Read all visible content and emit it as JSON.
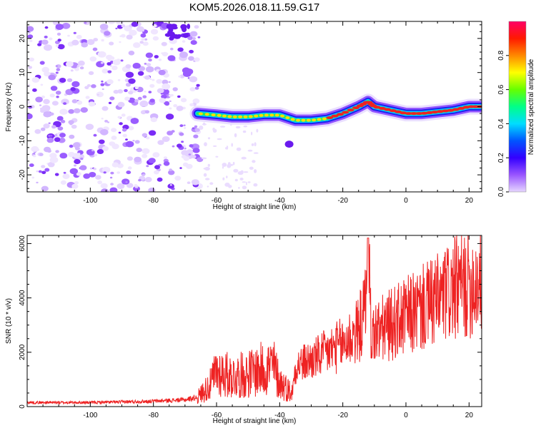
{
  "title": "KOM5.2026.018.11.59.G17",
  "colors": {
    "snr_line": "#ee2222",
    "track_core": "#ee2222",
    "track_edge": "#2200dd",
    "noise": "#6a1aee",
    "colorbar": [
      "#cc99ff",
      "#5500ff",
      "#0022ff",
      "#00ddff",
      "#00ff55",
      "#aaff00",
      "#ffff00",
      "#ff8800",
      "#ff2200",
      "#ff0077"
    ]
  },
  "chart_data": [
    {
      "type": "heatmap",
      "xlabel": "Height of straight line (km)",
      "ylabel": "Frequency (Hz)",
      "xlim": [
        -120,
        24
      ],
      "ylim": [
        -25,
        25
      ],
      "xticks": [
        "-100",
        "-80",
        "-60",
        "-40",
        "-20",
        "0",
        "20"
      ],
      "yticks": [
        "-20",
        "-10",
        "0",
        "10",
        "20"
      ],
      "colorbar": {
        "label": "Normalized spectral amplitude",
        "range": [
          0,
          1
        ],
        "ticks": [
          "0.0",
          "0.2",
          "0.4",
          "0.6",
          "0.8"
        ]
      },
      "noise_region_x": [
        -120,
        -65
      ],
      "track": {
        "x": [
          -66,
          -60,
          -55,
          -50,
          -45,
          -40,
          -35,
          -30,
          -25,
          -20,
          -15,
          -12,
          -10,
          -5,
          0,
          5,
          10,
          15,
          20,
          24
        ],
        "y": [
          -2,
          -2.5,
          -3,
          -3,
          -2.5,
          -2.5,
          -4,
          -4,
          -3.5,
          -2,
          0,
          1.5,
          0,
          -1,
          -2,
          -2,
          -1.5,
          -1,
          0,
          0
        ]
      }
    },
    {
      "type": "line",
      "xlabel": "Height of straight line (km)",
      "ylabel": "SNR (10 * v/v)",
      "xlim": [
        -120,
        24
      ],
      "ylim": [
        0,
        6300
      ],
      "xticks": [
        "-100",
        "-80",
        "-60",
        "-40",
        "-20",
        "0",
        "20"
      ],
      "yticks": [
        "0",
        "2000",
        "4000",
        "6000"
      ],
      "series": [
        {
          "x": [
            -120,
            -110,
            -100,
            -90,
            -80,
            -70,
            -66,
            -62,
            -60,
            -55,
            -50,
            -45,
            -42,
            -40,
            -36,
            -35,
            -30,
            -25,
            -20,
            -15,
            -13,
            -12,
            -11,
            -10,
            -5,
            0,
            5,
            10,
            15,
            20,
            24
          ],
          "y": [
            150,
            150,
            150,
            170,
            200,
            250,
            350,
            800,
            1300,
            1100,
            1200,
            1400,
            1500,
            900,
            500,
            1500,
            1700,
            2000,
            2300,
            2800,
            3500,
            6200,
            2600,
            2700,
            3000,
            3300,
            3600,
            3900,
            4300,
            4500,
            4700
          ]
        }
      ]
    }
  ]
}
